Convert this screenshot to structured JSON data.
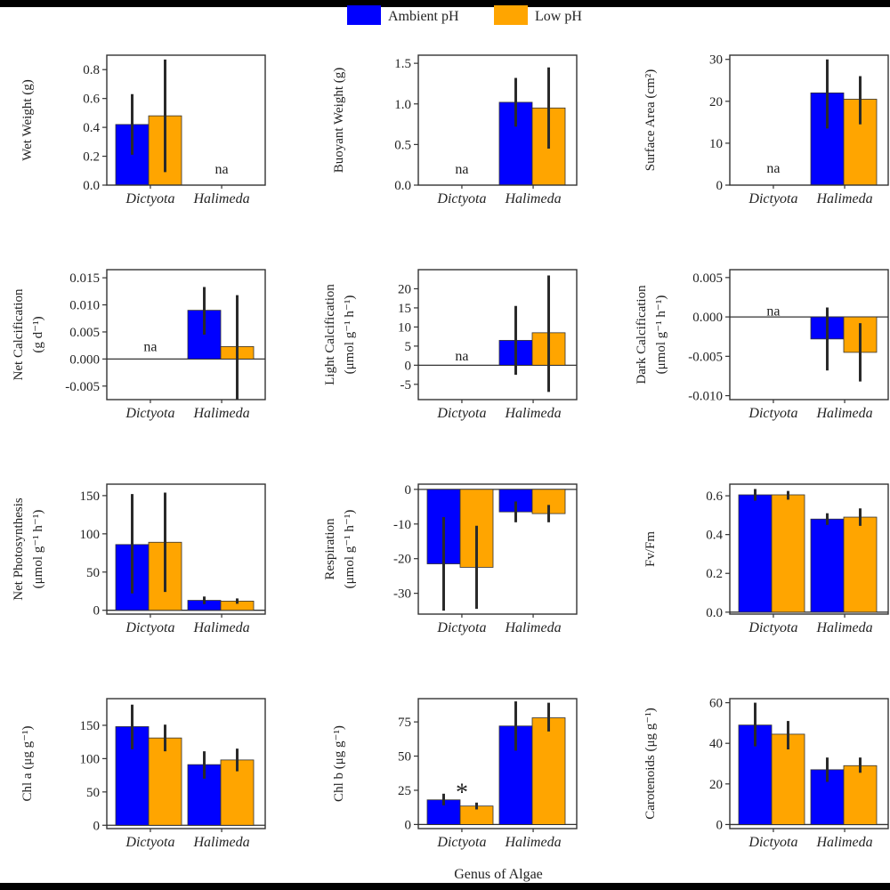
{
  "legend": {
    "items": [
      {
        "label": "Ambient pH",
        "color": "#0000ff"
      },
      {
        "label": "Low pH",
        "color": "#ffa500"
      }
    ]
  },
  "global_xlabel": "Genus of Algae",
  "colors": {
    "ambient": "#0000ff",
    "low": "#ffa500",
    "axis": "#333333",
    "errorbar": "#2a2a2a"
  },
  "chart_data": [
    {
      "type": "bar",
      "ylabel_lines": [
        "Wet Weight (g)"
      ],
      "categories": [
        "Dictyota",
        "Halimeda"
      ],
      "ylim": [
        0,
        0.9
      ],
      "ticks": [
        0.0,
        0.2,
        0.4,
        0.6,
        0.8
      ],
      "tick_labels": [
        "0.0",
        "0.2",
        "0.4",
        "0.6",
        "0.8"
      ],
      "series": [
        {
          "name": "Ambient pH",
          "values": [
            0.42,
            null
          ],
          "err_low": [
            0.21,
            null
          ],
          "err_high": [
            0.63,
            null
          ]
        },
        {
          "name": "Low pH",
          "values": [
            0.48,
            null
          ],
          "err_low": [
            0.09,
            null
          ],
          "err_high": [
            0.87,
            null
          ]
        }
      ],
      "annotations": [
        {
          "text": "na",
          "category": 1,
          "y": 0.08
        }
      ]
    },
    {
      "type": "bar",
      "ylabel_lines": [
        "Buoyant Weight (g)"
      ],
      "categories": [
        "Dictyota",
        "Halimeda"
      ],
      "ylim": [
        0,
        1.6
      ],
      "ticks": [
        0.0,
        0.5,
        1.0,
        1.5
      ],
      "tick_labels": [
        "0.0",
        "0.5",
        "1.0",
        "1.5"
      ],
      "series": [
        {
          "name": "Ambient pH",
          "values": [
            null,
            1.02
          ],
          "err_low": [
            null,
            0.72
          ],
          "err_high": [
            null,
            1.32
          ]
        },
        {
          "name": "Low pH",
          "values": [
            null,
            0.95
          ],
          "err_low": [
            null,
            0.45
          ],
          "err_high": [
            null,
            1.45
          ]
        }
      ],
      "annotations": [
        {
          "text": "na",
          "category": 0,
          "y": 0.14
        }
      ]
    },
    {
      "type": "bar",
      "ylabel_lines": [
        "Surface Area (cm²)"
      ],
      "categories": [
        "Dictyota",
        "Halimeda"
      ],
      "ylim": [
        0,
        31
      ],
      "ticks": [
        0,
        10,
        20,
        30
      ],
      "tick_labels": [
        "0",
        "10",
        "20",
        "30"
      ],
      "series": [
        {
          "name": "Ambient pH",
          "values": [
            null,
            22
          ],
          "err_low": [
            null,
            13.5
          ],
          "err_high": [
            null,
            30
          ]
        },
        {
          "name": "Low pH",
          "values": [
            null,
            20.5
          ],
          "err_low": [
            null,
            14.5
          ],
          "err_high": [
            null,
            26
          ]
        }
      ],
      "annotations": [
        {
          "text": "na",
          "category": 0,
          "y": 3
        }
      ]
    },
    {
      "type": "bar",
      "ylabel_lines": [
        "Net Calcification",
        "(g d⁻¹)"
      ],
      "categories": [
        "Dictyota",
        "Halimeda"
      ],
      "ylim": [
        -0.0075,
        0.0165
      ],
      "ticks": [
        -0.005,
        0.0,
        0.005,
        0.01,
        0.015
      ],
      "tick_labels": [
        "-0.005",
        "0.000",
        "0.005",
        "0.010",
        "0.015"
      ],
      "series": [
        {
          "name": "Ambient pH",
          "values": [
            null,
            0.009
          ],
          "err_low": [
            null,
            0.0045
          ],
          "err_high": [
            null,
            0.0133
          ]
        },
        {
          "name": "Low pH",
          "values": [
            null,
            0.0023
          ],
          "err_low": [
            null,
            -0.0075
          ],
          "err_high": [
            null,
            0.0118
          ]
        }
      ],
      "annotations": [
        {
          "text": "na",
          "category": 0,
          "y": 0.0015
        }
      ]
    },
    {
      "type": "bar",
      "ylabel_lines": [
        "Light Calcification",
        "(μmol g⁻¹ h⁻¹)"
      ],
      "categories": [
        "Dictyota",
        "Halimeda"
      ],
      "ylim": [
        -9,
        25
      ],
      "ticks": [
        -5,
        0,
        5,
        10,
        15,
        20
      ],
      "tick_labels": [
        "-5",
        "0",
        "5",
        "10",
        "15",
        "20"
      ],
      "series": [
        {
          "name": "Ambient pH",
          "values": [
            null,
            6.5
          ],
          "err_low": [
            null,
            -2.5
          ],
          "err_high": [
            null,
            15.5
          ]
        },
        {
          "name": "Low pH",
          "values": [
            null,
            8.5
          ],
          "err_low": [
            null,
            -7
          ],
          "err_high": [
            null,
            23.5
          ]
        }
      ],
      "annotations": [
        {
          "text": "na",
          "category": 0,
          "y": 1.2
        }
      ]
    },
    {
      "type": "bar",
      "ylabel_lines": [
        "Dark Calcification",
        "(μmol g⁻¹ h⁻¹)"
      ],
      "categories": [
        "Dictyota",
        "Halimeda"
      ],
      "ylim": [
        -0.0105,
        0.006
      ],
      "ticks": [
        -0.01,
        -0.005,
        0.0,
        0.005
      ],
      "tick_labels": [
        "-0.010",
        "-0.005",
        "0.000",
        "0.005"
      ],
      "series": [
        {
          "name": "Ambient pH",
          "values": [
            null,
            -0.0028
          ],
          "err_low": [
            null,
            -0.0068
          ],
          "err_high": [
            null,
            0.0012
          ]
        },
        {
          "name": "Low pH",
          "values": [
            null,
            -0.0045
          ],
          "err_low": [
            null,
            -0.0082
          ],
          "err_high": [
            null,
            -0.0008
          ]
        }
      ],
      "annotations": [
        {
          "text": "na",
          "category": 0,
          "y": 0.0002
        }
      ]
    },
    {
      "type": "bar",
      "ylabel_lines": [
        "Net Photosynthesis",
        "(μmol g⁻¹ h⁻¹)"
      ],
      "categories": [
        "Dictyota",
        "Halimeda"
      ],
      "ylim": [
        -5,
        165
      ],
      "ticks": [
        0,
        50,
        100,
        150
      ],
      "tick_labels": [
        "0",
        "50",
        "100",
        "150"
      ],
      "series": [
        {
          "name": "Ambient pH",
          "values": [
            86,
            13
          ],
          "err_low": [
            22,
            8
          ],
          "err_high": [
            152,
            18
          ]
        },
        {
          "name": "Low pH",
          "values": [
            89,
            12
          ],
          "err_low": [
            24,
            8.5
          ],
          "err_high": [
            154,
            15.5
          ]
        }
      ],
      "annotations": []
    },
    {
      "type": "bar",
      "ylabel_lines": [
        "Respiration",
        "(μmol g⁻¹ h⁻¹)"
      ],
      "categories": [
        "Dictyota",
        "Halimeda"
      ],
      "ylim": [
        -36,
        1.5
      ],
      "ticks": [
        -30,
        -20,
        -10,
        0
      ],
      "tick_labels": [
        "-30",
        "-20",
        "-10",
        "0"
      ],
      "series": [
        {
          "name": "Ambient pH",
          "values": [
            -21.5,
            -6.5
          ],
          "err_low": [
            -35,
            -9.5
          ],
          "err_high": [
            -8,
            -3.5
          ]
        },
        {
          "name": "Low pH",
          "values": [
            -22.5,
            -7
          ],
          "err_low": [
            -34.5,
            -9.5
          ],
          "err_high": [
            -10.5,
            -4.5
          ]
        }
      ],
      "annotations": []
    },
    {
      "type": "bar",
      "ylabel_lines": [
        "Fv/Fm"
      ],
      "categories": [
        "Dictyota",
        "Halimeda"
      ],
      "ylim": [
        -0.01,
        0.66
      ],
      "ticks": [
        0.0,
        0.2,
        0.4,
        0.6
      ],
      "tick_labels": [
        "0.0",
        "0.2",
        "0.4",
        "0.6"
      ],
      "series": [
        {
          "name": "Ambient pH",
          "values": [
            0.605,
            0.48
          ],
          "err_low": [
            0.575,
            0.45
          ],
          "err_high": [
            0.635,
            0.51
          ]
        },
        {
          "name": "Low pH",
          "values": [
            0.605,
            0.49
          ],
          "err_low": [
            0.58,
            0.445
          ],
          "err_high": [
            0.625,
            0.535
          ]
        }
      ],
      "annotations": []
    },
    {
      "type": "bar",
      "ylabel_lines": [
        "Chl a (μg g⁻¹)"
      ],
      "categories": [
        "Dictyota",
        "Halimeda"
      ],
      "ylim": [
        -5,
        190
      ],
      "ticks": [
        0,
        50,
        100,
        150
      ],
      "tick_labels": [
        "0",
        "50",
        "100",
        "150"
      ],
      "series": [
        {
          "name": "Ambient pH",
          "values": [
            148,
            91
          ],
          "err_low": [
            114,
            70
          ],
          "err_high": [
            181,
            111
          ]
        },
        {
          "name": "Low pH",
          "values": [
            131,
            98
          ],
          "err_low": [
            111,
            81
          ],
          "err_high": [
            151,
            115
          ]
        }
      ],
      "annotations": []
    },
    {
      "type": "bar",
      "ylabel_lines": [
        "Chl b (μg g⁻¹)"
      ],
      "categories": [
        "Dictyota",
        "Halimeda"
      ],
      "ylim": [
        -3,
        92
      ],
      "ticks": [
        0,
        25,
        50,
        75
      ],
      "tick_labels": [
        "0",
        "25",
        "50",
        "75"
      ],
      "series": [
        {
          "name": "Ambient pH",
          "values": [
            18,
            72
          ],
          "err_low": [
            14,
            54
          ],
          "err_high": [
            22.5,
            90
          ]
        },
        {
          "name": "Low pH",
          "values": [
            13.5,
            78
          ],
          "err_low": [
            11,
            68
          ],
          "err_high": [
            16,
            89
          ]
        }
      ],
      "annotations": [
        {
          "text": "*",
          "category": 0,
          "y": 24
        }
      ]
    },
    {
      "type": "bar",
      "ylabel_lines": [
        "Carotenoids (μg g⁻¹)"
      ],
      "categories": [
        "Dictyota",
        "Halimeda"
      ],
      "ylim": [
        -2,
        62
      ],
      "ticks": [
        0,
        20,
        40,
        60
      ],
      "tick_labels": [
        "0",
        "20",
        "40",
        "60"
      ],
      "series": [
        {
          "name": "Ambient pH",
          "values": [
            49,
            27
          ],
          "err_low": [
            38.5,
            21
          ],
          "err_high": [
            60,
            33
          ]
        },
        {
          "name": "Low pH",
          "values": [
            44.5,
            29
          ],
          "err_low": [
            37,
            25.5
          ],
          "err_high": [
            51,
            33
          ]
        }
      ],
      "annotations": []
    }
  ]
}
